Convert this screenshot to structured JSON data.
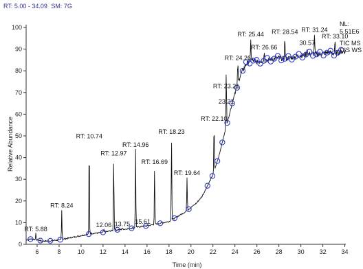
{
  "header": {
    "rt_range": "RT: 5.00 - 34.09",
    "smoothing": "SM: 7G"
  },
  "info": {
    "nl_label": "NL:",
    "nl_value": "5.51E6",
    "trace1": "TIC MS",
    "trace2": "CIS WS"
  },
  "colors": {
    "trace": "#111111",
    "markers": "#2b37c8",
    "axis": "#333333",
    "header": "#2d2f8f"
  },
  "chart_data": {
    "type": "line",
    "xlabel": "Time (min)",
    "ylabel": "Relative Abundance",
    "xlim": [
      5.0,
      34.09
    ],
    "ylim": [
      0,
      100
    ],
    "x_ticks": [
      6,
      8,
      10,
      12,
      14,
      16,
      18,
      20,
      22,
      24,
      26,
      28,
      30,
      32,
      34
    ],
    "y_ticks": [
      0,
      10,
      20,
      30,
      40,
      50,
      60,
      70,
      80,
      90,
      100
    ],
    "grid": false,
    "baseline": {
      "x": [
        5.0,
        5.5,
        6.0,
        6.5,
        7.0,
        7.5,
        8.0,
        8.5,
        9.0,
        9.5,
        10.0,
        10.5,
        11.0,
        11.5,
        12.0,
        12.5,
        13.0,
        13.5,
        14.0,
        14.5,
        15.0,
        15.5,
        16.0,
        16.5,
        17.0,
        17.5,
        18.0,
        18.5,
        19.0,
        19.5,
        20.0,
        20.5,
        21.0,
        21.5,
        22.0,
        22.5,
        23.0,
        23.5,
        24.0,
        24.5,
        25.0,
        25.5,
        26.0,
        26.5,
        27.0,
        27.5,
        28.0,
        28.5,
        29.0,
        29.5,
        30.0,
        30.5,
        31.0,
        31.5,
        32.0,
        32.5,
        33.0,
        33.5,
        34.0
      ],
      "y": [
        2,
        2.5,
        2,
        1.5,
        1.5,
        1.8,
        2,
        2.5,
        3,
        3.5,
        4,
        4.5,
        5,
        5.2,
        5.5,
        6,
        6.5,
        6.8,
        7,
        7.3,
        7.8,
        8.2,
        8.5,
        9,
        9.5,
        10,
        10.5,
        12,
        13.5,
        15,
        17,
        19,
        22,
        27,
        32,
        40,
        50,
        60,
        70,
        78,
        83,
        85,
        84,
        84.5,
        85,
        85.5,
        86,
        85.5,
        86,
        86.5,
        87,
        87.5,
        88,
        87.5,
        88,
        88.5,
        88,
        88.5,
        89
      ]
    },
    "peaks": [
      {
        "label": "RT: 5.88",
        "x": 5.88,
        "y": 5
      },
      {
        "label": "RT: 8.24",
        "x": 8.24,
        "y": 16
      },
      {
        "label": "RT: 10.74",
        "x": 10.74,
        "y": 48
      },
      {
        "label": "12.06",
        "x": 12.06,
        "y": 7
      },
      {
        "label": "RT: 12.97",
        "x": 12.97,
        "y": 40
      },
      {
        "label": "13.75",
        "x": 13.75,
        "y": 7.5
      },
      {
        "label": "RT: 14.96",
        "x": 14.96,
        "y": 44
      },
      {
        "label": "15.61",
        "x": 15.61,
        "y": 8.5
      },
      {
        "label": "RT: 16.69",
        "x": 16.69,
        "y": 36
      },
      {
        "label": "RT: 18.23",
        "x": 18.23,
        "y": 50
      },
      {
        "label": "RT: 19.64",
        "x": 19.64,
        "y": 31
      },
      {
        "label": "RT: 22.10",
        "x": 22.1,
        "y": 56
      },
      {
        "label": "23.21",
        "x": 23.21,
        "y": 64
      },
      {
        "label": "RT: 23.21",
        "x": 23.21,
        "y": 71
      },
      {
        "label": "RT: 24.26",
        "x": 24.26,
        "y": 84
      },
      {
        "label": "RT: 25.44",
        "x": 25.44,
        "y": 95
      },
      {
        "label": "RT: 26.66",
        "x": 26.66,
        "y": 89
      },
      {
        "label": "RT: 28.54",
        "x": 28.54,
        "y": 96
      },
      {
        "label": "30.57",
        "x": 30.57,
        "y": 91
      },
      {
        "label": "RT: 31.24",
        "x": 31.24,
        "y": 97
      },
      {
        "label": "RT: 33.10",
        "x": 33.1,
        "y": 94
      }
    ]
  }
}
